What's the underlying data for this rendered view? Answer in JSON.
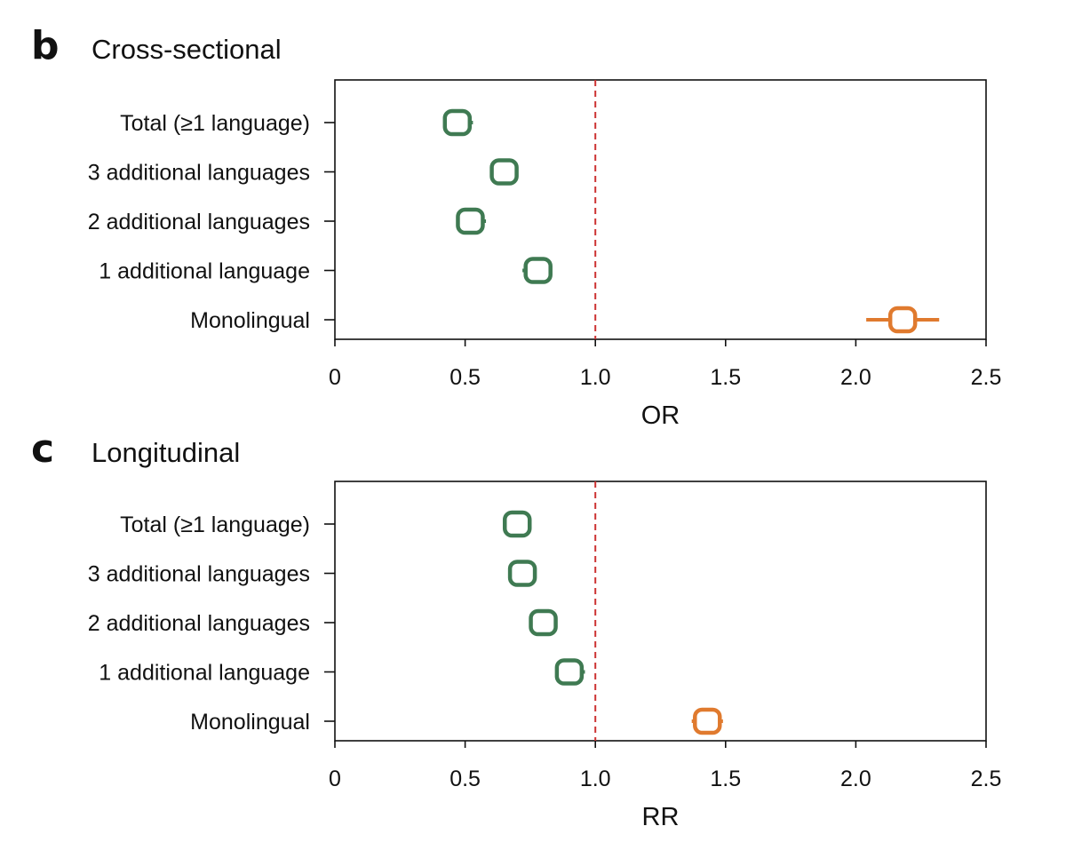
{
  "chart_data": [
    {
      "type": "scatter",
      "panel_letter": "b",
      "title": "Cross-sectional",
      "xlabel": "OR",
      "ylabel": "",
      "xlim": [
        0,
        2.5
      ],
      "xticks": [
        0,
        0.5,
        1.0,
        1.5,
        2.0,
        2.5
      ],
      "xtick_labels": [
        "0",
        "0.5",
        "1.0",
        "1.5",
        "2.0",
        "2.5"
      ],
      "reference_line": 1.0,
      "categories": [
        "Total (≥1 language)",
        "3 additional languages",
        "2 additional languages",
        "1 additional language",
        "Monolingual"
      ],
      "values": [
        0.47,
        0.65,
        0.52,
        0.78,
        2.18
      ],
      "ci_low": [
        0.42,
        0.6,
        0.47,
        0.72,
        2.04
      ],
      "ci_high": [
        0.53,
        0.7,
        0.58,
        0.83,
        2.32
      ],
      "point_colors": [
        "#3f7a52",
        "#3f7a52",
        "#3f7a52",
        "#3f7a52",
        "#e07a2e"
      ]
    },
    {
      "type": "scatter",
      "panel_letter": "c",
      "title": "Longitudinal",
      "xlabel": "RR",
      "ylabel": "",
      "xlim": [
        0,
        2.5
      ],
      "xticks": [
        0,
        0.5,
        1.0,
        1.5,
        2.0,
        2.5
      ],
      "xtick_labels": [
        "0",
        "0.5",
        "1.0",
        "1.5",
        "2.0",
        "2.5"
      ],
      "reference_line": 1.0,
      "categories": [
        "Total (≥1 language)",
        "3 additional languages",
        "2 additional languages",
        "1 additional language",
        "Monolingual"
      ],
      "values": [
        0.7,
        0.72,
        0.8,
        0.9,
        1.43
      ],
      "ci_low": [
        0.65,
        0.67,
        0.75,
        0.85,
        1.37
      ],
      "ci_high": [
        0.75,
        0.77,
        0.85,
        0.96,
        1.49
      ],
      "point_colors": [
        "#3f7a52",
        "#3f7a52",
        "#3f7a52",
        "#3f7a52",
        "#e07a2e"
      ]
    }
  ],
  "colors": {
    "reference_line": "#cc3333",
    "axis": "#111111"
  }
}
